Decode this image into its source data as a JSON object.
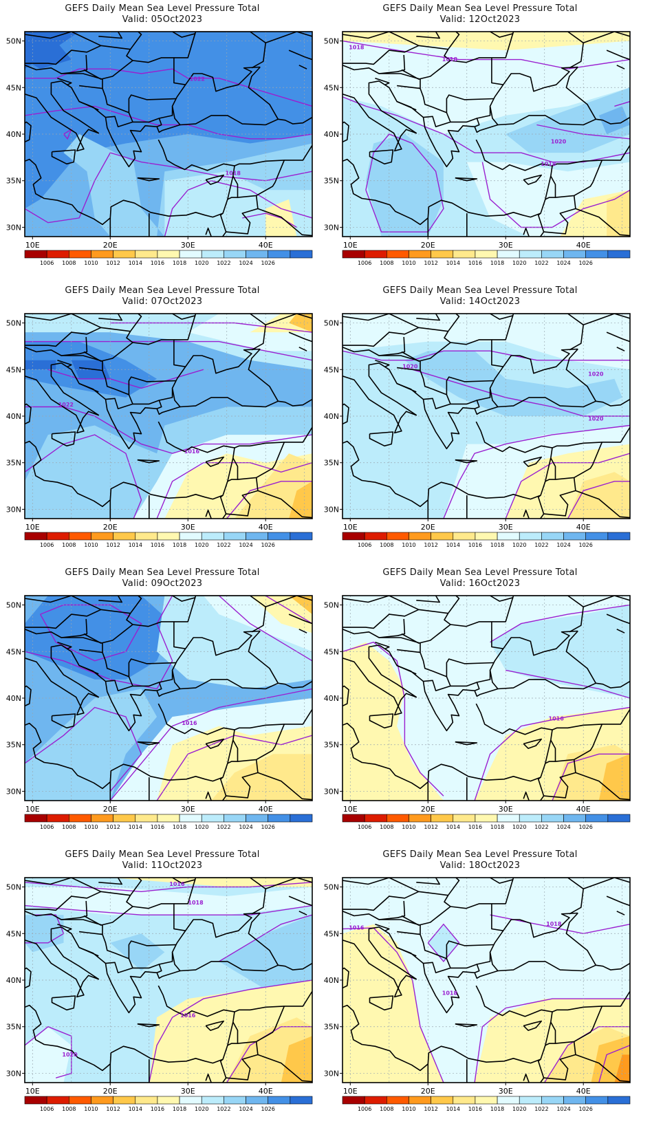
{
  "title_line1": "GEFS Daily Mean Sea Level Pressure Total",
  "valid_prefix": "Valid: ",
  "axis": {
    "lat_ticks": [
      "50N",
      "45N",
      "40N",
      "35N",
      "30N"
    ],
    "lon_ticks": [
      "10E",
      "20E",
      "30E",
      "40E"
    ]
  },
  "colorbar": {
    "labels": [
      "1006",
      "1008",
      "1010",
      "1012",
      "1014",
      "1016",
      "1018",
      "1020",
      "1022",
      "1024",
      "1026"
    ],
    "colors": [
      "#a80000",
      "#dd1c00",
      "#ff5a00",
      "#ff9a1e",
      "#ffc84a",
      "#ffe98c",
      "#fff8b0",
      "#e2fbff",
      "#bcecfb",
      "#98d6f6",
      "#6fb6ef",
      "#4390e6",
      "#2a6fd6"
    ]
  },
  "panels": [
    {
      "date": "05Oct2023",
      "scheme": "high",
      "labels": [
        {
          "text": "1022",
          "lon": 31.2,
          "lat": 45.9
        },
        {
          "text": "1018",
          "lon": 35.8,
          "lat": 35.8
        }
      ]
    },
    {
      "date": "12Oct2023",
      "scheme": "mid",
      "labels": [
        {
          "text": "1018",
          "lon": 10.8,
          "lat": 49.3
        },
        {
          "text": "1018",
          "lon": 22.8,
          "lat": 48.0
        },
        {
          "text": "1020",
          "lon": 36.8,
          "lat": 39.2
        },
        {
          "text": "1018",
          "lon": 35.5,
          "lat": 36.8
        }
      ]
    },
    {
      "date": "07Oct2023",
      "scheme": "high2",
      "labels": [
        {
          "text": "1022",
          "lon": 14.3,
          "lat": 41.2
        },
        {
          "text": "1016",
          "lon": 30.5,
          "lat": 36.2
        }
      ]
    },
    {
      "date": "14Oct2023",
      "scheme": "mid2",
      "labels": [
        {
          "text": "1020",
          "lon": 17.7,
          "lat": 45.3
        },
        {
          "text": "1020",
          "lon": 41.6,
          "lat": 44.5
        },
        {
          "text": "1020",
          "lon": 41.6,
          "lat": 39.7
        }
      ]
    },
    {
      "date": "09Oct2023",
      "scheme": "high3",
      "labels": [
        {
          "text": "1016",
          "lon": 30.2,
          "lat": 37.3
        }
      ]
    },
    {
      "date": "16Oct2023",
      "scheme": "low",
      "labels": [
        {
          "text": "1016",
          "lon": 36.5,
          "lat": 37.8
        }
      ]
    },
    {
      "date": "11Oct2023",
      "scheme": "mid3",
      "labels": [
        {
          "text": "1016",
          "lon": 28.6,
          "lat": 50.3
        },
        {
          "text": "1018",
          "lon": 31.0,
          "lat": 48.3
        },
        {
          "text": "1016",
          "lon": 30.0,
          "lat": 36.2
        },
        {
          "text": "1020",
          "lon": 14.8,
          "lat": 32.0
        }
      ]
    },
    {
      "date": "18Oct2023",
      "scheme": "low2",
      "labels": [
        {
          "text": "1016",
          "lon": 10.8,
          "lat": 45.6
        },
        {
          "text": "1018",
          "lon": 22.8,
          "lat": 38.6
        },
        {
          "text": "1018",
          "lon": 36.2,
          "lat": 46.0
        }
      ]
    }
  ]
}
